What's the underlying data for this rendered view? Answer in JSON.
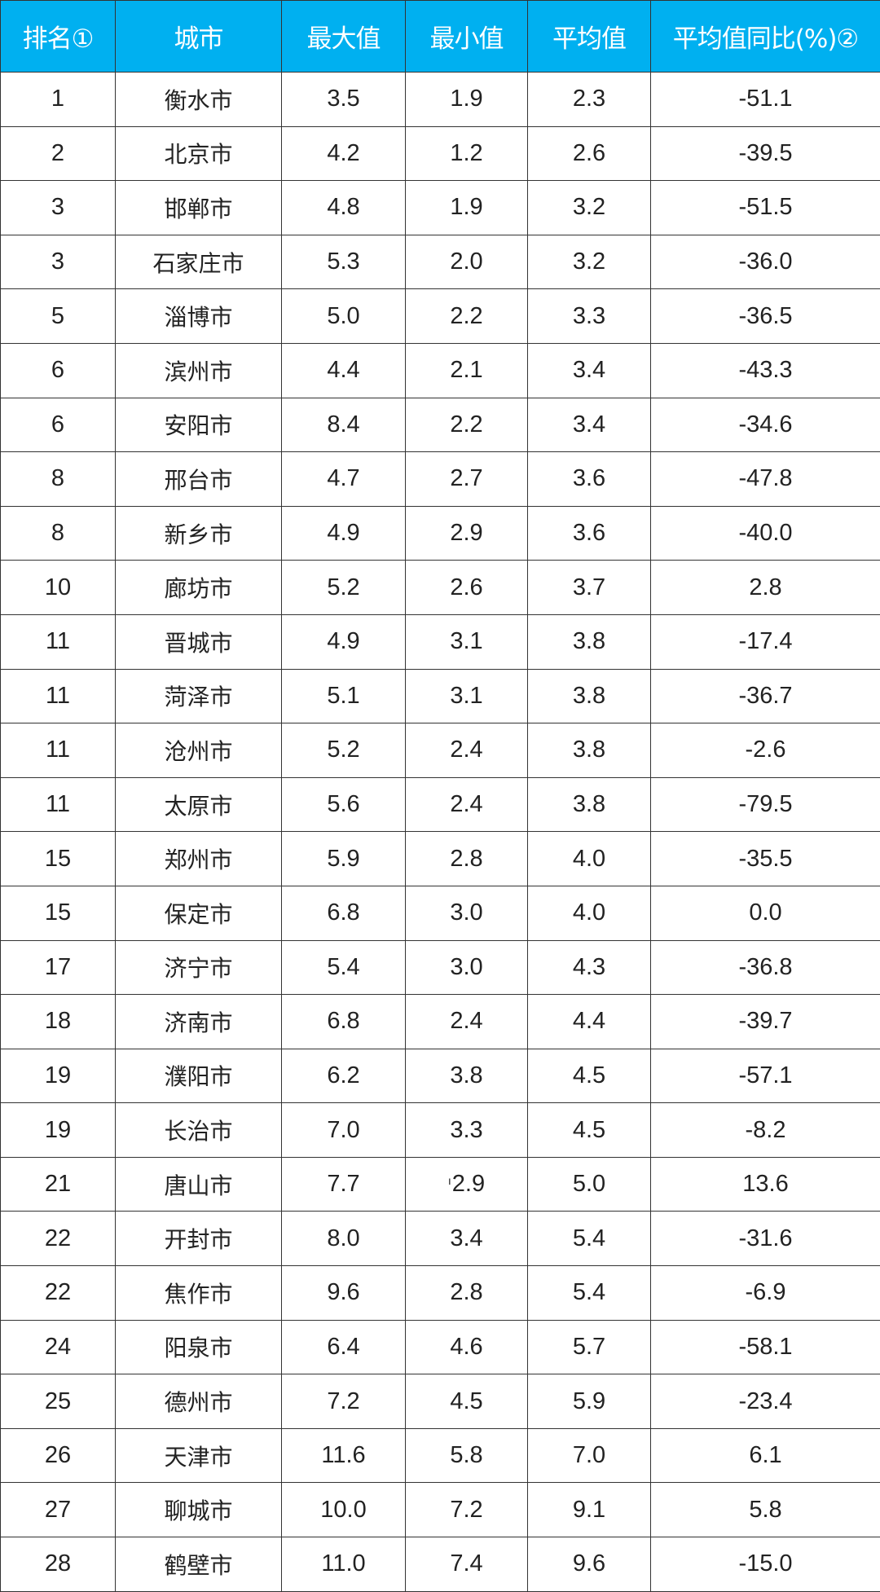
{
  "header_color": "#00b0f0",
  "columns": [
    "排名①",
    "城市",
    "最大值",
    "最小值",
    "平均值",
    "平均值同比(%)②"
  ],
  "rows": [
    [
      "1",
      "衡水市",
      "3.5",
      "1.9",
      "2.3",
      "-51.1"
    ],
    [
      "2",
      "北京市",
      "4.2",
      "1.2",
      "2.6",
      "-39.5"
    ],
    [
      "3",
      "邯郸市",
      "4.8",
      "1.9",
      "3.2",
      "-51.5"
    ],
    [
      "3",
      "石家庄市",
      "5.3",
      "2.0",
      "3.2",
      "-36.0"
    ],
    [
      "5",
      "淄博市",
      "5.0",
      "2.2",
      "3.3",
      "-36.5"
    ],
    [
      "6",
      "滨州市",
      "4.4",
      "2.1",
      "3.4",
      "-43.3"
    ],
    [
      "6",
      "安阳市",
      "8.4",
      "2.2",
      "3.4",
      "-34.6"
    ],
    [
      "8",
      "邢台市",
      "4.7",
      "2.7",
      "3.6",
      "-47.8"
    ],
    [
      "8",
      "新乡市",
      "4.9",
      "2.9",
      "3.6",
      "-40.0"
    ],
    [
      "10",
      "廊坊市",
      "5.2",
      "2.6",
      "3.7",
      "2.8"
    ],
    [
      "11",
      "晋城市",
      "4.9",
      "3.1",
      "3.8",
      "-17.4"
    ],
    [
      "11",
      "菏泽市",
      "5.1",
      "3.1",
      "3.8",
      "-36.7"
    ],
    [
      "11",
      "沧州市",
      "5.2",
      "2.4",
      "3.8",
      "-2.6"
    ],
    [
      "11",
      "太原市",
      "5.6",
      "2.4",
      "3.8",
      "-79.5"
    ],
    [
      "15",
      "郑州市",
      "5.9",
      "2.8",
      "4.0",
      "-35.5"
    ],
    [
      "15",
      "保定市",
      "6.8",
      "3.0",
      "4.0",
      "0.0"
    ],
    [
      "17",
      "济宁市",
      "5.4",
      "3.0",
      "4.3",
      "-36.8"
    ],
    [
      "18",
      "济南市",
      "6.8",
      "2.4",
      "4.4",
      "-39.7"
    ],
    [
      "19",
      "濮阳市",
      "6.2",
      "3.8",
      "4.5",
      "-57.1"
    ],
    [
      "19",
      "长治市",
      "7.0",
      "3.3",
      "4.5",
      "-8.2"
    ],
    [
      "21",
      "唐山市",
      "7.7",
      "2.9",
      "5.0",
      "13.6"
    ],
    [
      "22",
      "开封市",
      "8.0",
      "3.4",
      "5.4",
      "-31.6"
    ],
    [
      "22",
      "焦作市",
      "9.6",
      "2.8",
      "5.4",
      "-6.9"
    ],
    [
      "24",
      "阳泉市",
      "6.4",
      "4.6",
      "5.7",
      "-58.1"
    ],
    [
      "25",
      "德州市",
      "7.2",
      "4.5",
      "5.9",
      "-23.4"
    ],
    [
      "26",
      "天津市",
      "11.6",
      "5.8",
      "7.0",
      "6.1"
    ],
    [
      "27",
      "聊城市",
      "10.0",
      "7.2",
      "9.1",
      "5.8"
    ],
    [
      "28",
      "鹤壁市",
      "11.0",
      "7.4",
      "9.6",
      "-15.0"
    ]
  ]
}
